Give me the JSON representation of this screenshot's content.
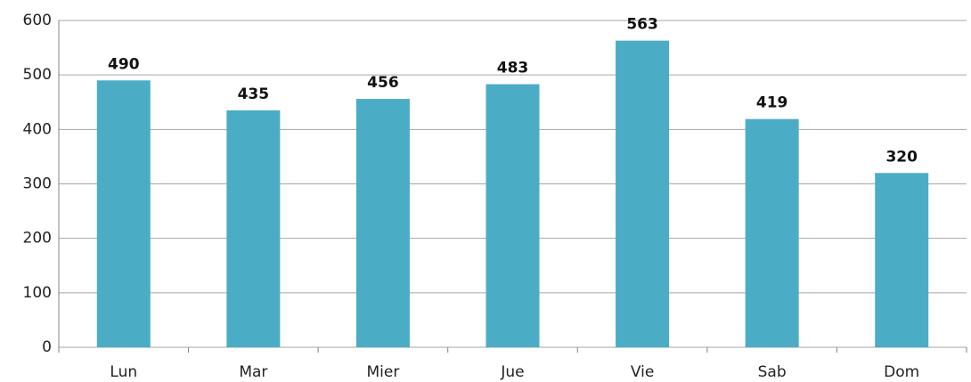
{
  "chart_data": {
    "type": "bar",
    "categories": [
      "Lun",
      "Mar",
      "Mier",
      "Jue",
      "Vie",
      "Sab",
      "Dom"
    ],
    "values": [
      490,
      435,
      456,
      483,
      563,
      419,
      320
    ],
    "color": "#4bacc6",
    "ylim": [
      0,
      600
    ],
    "yticks": [
      0,
      100,
      200,
      300,
      400,
      500,
      600
    ],
    "grid": true
  }
}
